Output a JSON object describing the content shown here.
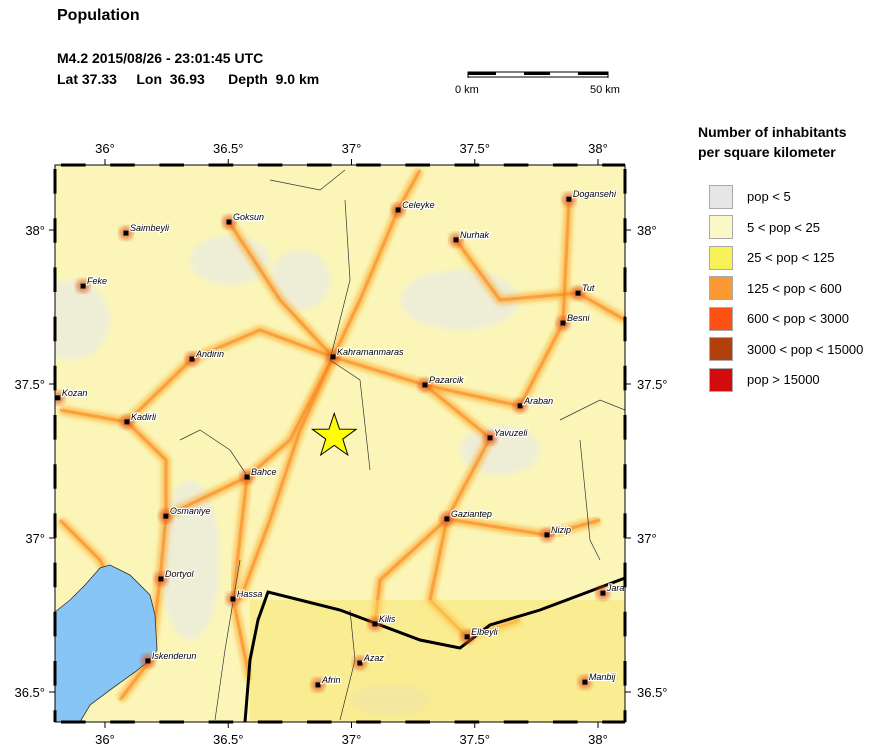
{
  "header": {
    "title": "Population",
    "event_line": "M4.2  2015/08/26 - 23:01:45 UTC",
    "location_line": "Lat 37.33     Lon  36.93      Depth  9.0 km"
  },
  "scale_bar": {
    "start_label": "0 km",
    "end_label": "50 km"
  },
  "legend": {
    "title_line1": "Number of inhabitants",
    "title_line2": "per square kilometer",
    "items": [
      {
        "label": "pop < 5",
        "color": "#e6e6e6"
      },
      {
        "label": "5 < pop < 25",
        "color": "#fbf8c8"
      },
      {
        "label": "25 < pop < 125",
        "color": "#f8f25a"
      },
      {
        "label": "125 < pop < 600",
        "color": "#fb9a32"
      },
      {
        "label": "600 < pop < 3000",
        "color": "#fb5214"
      },
      {
        "label": "3000 < pop < 15000",
        "color": "#b2400e"
      },
      {
        "label": "pop > 15000",
        "color": "#d00c0c"
      }
    ]
  },
  "map": {
    "lon_ticks": [
      "36°",
      "36.5°",
      "37°",
      "37.5°",
      "38°"
    ],
    "lat_ticks": [
      "38°",
      "37.5°",
      "37°",
      "36.5°"
    ],
    "epicenter": {
      "lat": 37.33,
      "lon": 36.93,
      "marker": "star-icon",
      "color": "#ffff00"
    },
    "sea_color": "#86c5f5",
    "cities": [
      {
        "name": "Saimbeyli",
        "lon": 36.085,
        "lat": 37.99
      },
      {
        "name": "Goksun",
        "lon": 36.503,
        "lat": 38.026
      },
      {
        "name": "Celeyke",
        "lon": 37.189,
        "lat": 38.065
      },
      {
        "name": "Dogansehi",
        "lon": 37.882,
        "lat": 38.1
      },
      {
        "name": "Nurhak",
        "lon": 37.424,
        "lat": 37.968
      },
      {
        "name": "Feke",
        "lon": 35.911,
        "lat": 37.818
      },
      {
        "name": "Tut",
        "lon": 37.919,
        "lat": 37.795
      },
      {
        "name": "Besni",
        "lon": 37.858,
        "lat": 37.698
      },
      {
        "name": "Andirin",
        "lon": 36.353,
        "lat": 37.581
      },
      {
        "name": "Kahramanmaras",
        "lon": 36.925,
        "lat": 37.588
      },
      {
        "name": "Pazarcik",
        "lon": 37.298,
        "lat": 37.497
      },
      {
        "name": "Kozan",
        "lon": 35.809,
        "lat": 37.455
      },
      {
        "name": "Araban",
        "lon": 37.684,
        "lat": 37.429
      },
      {
        "name": "Kadirli",
        "lon": 36.089,
        "lat": 37.377
      },
      {
        "name": "Yavuzeli",
        "lon": 37.562,
        "lat": 37.325
      },
      {
        "name": "Bahce",
        "lon": 36.576,
        "lat": 37.198
      },
      {
        "name": "Osmaniye",
        "lon": 36.247,
        "lat": 37.071
      },
      {
        "name": "Gaziantep",
        "lon": 37.387,
        "lat": 37.062
      },
      {
        "name": "Nizip",
        "lon": 37.793,
        "lat": 37.01
      },
      {
        "name": "Dortyol",
        "lon": 36.227,
        "lat": 36.867
      },
      {
        "name": "Hassa",
        "lon": 36.519,
        "lat": 36.802
      },
      {
        "name": "Jara",
        "lon": 38.02,
        "lat": 36.821
      },
      {
        "name": "Kilis",
        "lon": 37.095,
        "lat": 36.721
      },
      {
        "name": "Elbeyli",
        "lon": 37.469,
        "lat": 36.679
      },
      {
        "name": "Iskenderun",
        "lon": 36.174,
        "lat": 36.601
      },
      {
        "name": "Azaz",
        "lon": 37.034,
        "lat": 36.594
      },
      {
        "name": "Afrin",
        "lon": 36.864,
        "lat": 36.523
      },
      {
        "name": "Manbij",
        "lon": 37.947,
        "lat": 36.532
      }
    ]
  }
}
